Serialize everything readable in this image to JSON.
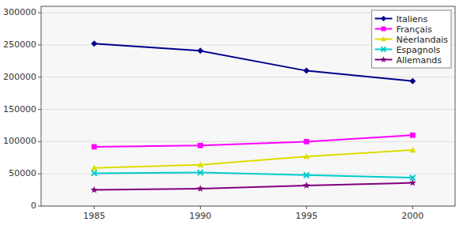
{
  "chart_data": {
    "type": "line",
    "x": [
      1985,
      1990,
      1995,
      2000
    ],
    "series": [
      {
        "name": "Italiens",
        "color": "#00008B",
        "marker": "diamond",
        "values": [
          252000,
          241000,
          210000,
          194000
        ]
      },
      {
        "name": "Français",
        "color": "#FF00FF",
        "marker": "square",
        "values": [
          92000,
          94000,
          100000,
          110000
        ]
      },
      {
        "name": "Néerlandais",
        "color": "#DDDD00",
        "marker": "triangle",
        "values": [
          59000,
          64000,
          77000,
          87000
        ]
      },
      {
        "name": "Espagnols",
        "color": "#00CCCC",
        "marker": "x",
        "values": [
          51000,
          52000,
          48000,
          44000
        ]
      },
      {
        "name": "Allemands",
        "color": "#800080",
        "marker": "star",
        "values": [
          25000,
          27000,
          32000,
          36000
        ]
      }
    ],
    "xlim": [
      1982.5,
      2002
    ],
    "xticks": [
      1985,
      1990,
      1995,
      2000
    ],
    "ylim": [
      0,
      310000
    ],
    "yticks": [
      0,
      50000,
      100000,
      150000,
      200000,
      250000,
      300000
    ],
    "grid": true,
    "legend": "upper right"
  }
}
